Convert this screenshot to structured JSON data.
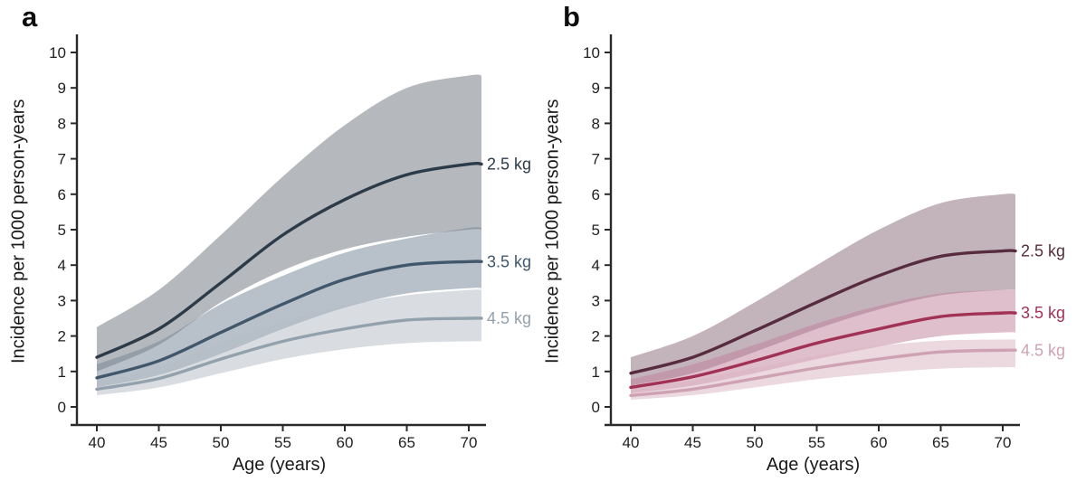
{
  "figure": {
    "background": "#ffffff",
    "axis_color": "#2a2a2a",
    "tick_text_color": "#1f1f1f",
    "band_opacity": 0.5
  },
  "chart_data": [
    {
      "type": "line",
      "panel_label": "a",
      "xlabel": "Age (years)",
      "ylabel": "Incidence per 1000 person-years",
      "x": [
        40,
        45,
        50,
        55,
        60,
        65,
        70
      ],
      "x_ticks": [
        40,
        45,
        50,
        55,
        60,
        65,
        70
      ],
      "y_ticks": [
        0,
        1,
        2,
        3,
        4,
        5,
        6,
        7,
        8,
        9,
        10
      ],
      "xlim": [
        38,
        71.5
      ],
      "ylim": [
        0,
        10
      ],
      "grid": false,
      "legend_position": "labels at right end of each line",
      "series": [
        {
          "name": "2.5 kg",
          "values": [
            1.4,
            2.2,
            3.5,
            4.85,
            5.85,
            6.55,
            6.85
          ],
          "ci_upper": [
            2.25,
            3.3,
            4.85,
            6.5,
            7.95,
            9.0,
            9.35
          ],
          "ci_lower": [
            1.0,
            1.75,
            2.95,
            3.85,
            4.45,
            4.8,
            5.0
          ],
          "line_color": "#2c3b49",
          "band_color": "#6b717b"
        },
        {
          "name": "3.5 kg",
          "values": [
            0.82,
            1.3,
            2.1,
            2.9,
            3.6,
            4.0,
            4.1
          ],
          "ci_upper": [
            1.2,
            1.85,
            2.9,
            3.7,
            4.35,
            4.75,
            5.05
          ],
          "ci_lower": [
            0.55,
            0.9,
            1.5,
            2.2,
            2.8,
            3.2,
            3.35
          ],
          "line_color": "#41586c",
          "band_color": "#718395"
        },
        {
          "name": "4.5 kg",
          "values": [
            0.5,
            0.8,
            1.35,
            1.85,
            2.2,
            2.45,
            2.5
          ],
          "ci_upper": [
            0.73,
            1.12,
            1.8,
            2.4,
            2.85,
            3.15,
            3.3
          ],
          "ci_lower": [
            0.33,
            0.55,
            0.95,
            1.35,
            1.63,
            1.8,
            1.85
          ],
          "line_color": "#93a1ac",
          "band_color": "#b3bbc5"
        }
      ]
    },
    {
      "type": "line",
      "panel_label": "b",
      "xlabel": "Age (years)",
      "ylabel": "Incidence per 1000 person-years",
      "x": [
        40,
        45,
        50,
        55,
        60,
        65,
        70
      ],
      "x_ticks": [
        40,
        45,
        50,
        55,
        60,
        65,
        70
      ],
      "y_ticks": [
        0,
        1,
        2,
        3,
        4,
        5,
        6,
        7,
        8,
        9,
        10
      ],
      "xlim": [
        38,
        71.5
      ],
      "ylim": [
        0,
        10
      ],
      "grid": false,
      "legend_position": "labels at right end of each line",
      "series": [
        {
          "name": "2.5 kg",
          "values": [
            0.95,
            1.4,
            2.15,
            2.95,
            3.7,
            4.25,
            4.4
          ],
          "ci_upper": [
            1.4,
            2.0,
            2.95,
            4.0,
            5.0,
            5.75,
            6.0
          ],
          "ci_lower": [
            0.6,
            0.95,
            1.55,
            2.2,
            2.75,
            3.15,
            3.3
          ],
          "line_color": "#572c3e",
          "band_color": "#876777"
        },
        {
          "name": "3.5 kg",
          "values": [
            0.55,
            0.85,
            1.3,
            1.8,
            2.2,
            2.55,
            2.65
          ],
          "ci_upper": [
            0.78,
            1.2,
            1.75,
            2.35,
            2.85,
            3.2,
            3.3
          ],
          "ci_lower": [
            0.38,
            0.6,
            0.95,
            1.35,
            1.7,
            2.0,
            2.1
          ],
          "line_color": "#a23156",
          "band_color": "#c17f99"
        },
        {
          "name": "4.5 kg",
          "values": [
            0.32,
            0.5,
            0.8,
            1.1,
            1.35,
            1.55,
            1.6
          ],
          "ci_upper": [
            0.5,
            0.75,
            1.1,
            1.45,
            1.72,
            1.87,
            1.9
          ],
          "ci_lower": [
            0.2,
            0.33,
            0.55,
            0.78,
            0.95,
            1.08,
            1.12
          ],
          "line_color": "#cfa2b3",
          "band_color": "#d9b3c1"
        }
      ]
    }
  ]
}
